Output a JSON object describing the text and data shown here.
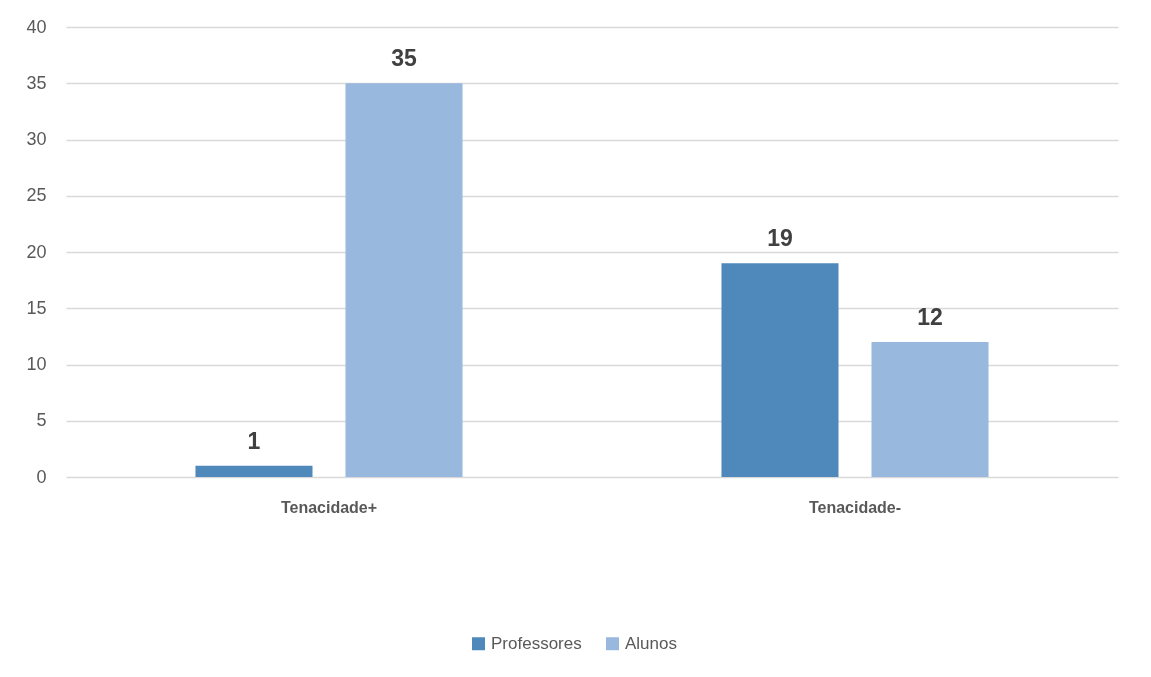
{
  "chart_data": {
    "type": "bar",
    "categories": [
      "Tenacidade+",
      "Tenacidade-"
    ],
    "series": [
      {
        "name": "Professores",
        "color": "#4f88bb",
        "values": [
          1,
          19
        ]
      },
      {
        "name": "Alunos",
        "color": "#98b8de",
        "values": [
          35,
          12
        ]
      }
    ],
    "ylim": [
      0,
      40
    ],
    "yticks": [
      0,
      5,
      10,
      15,
      20,
      25,
      30,
      35,
      40
    ],
    "grid": "y",
    "legend": "bottom",
    "data_labels": true
  }
}
